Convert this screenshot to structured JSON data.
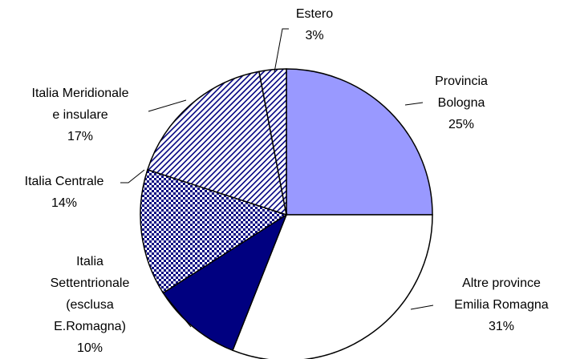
{
  "chart_data": {
    "type": "pie",
    "categories": [
      "Provincia\nBologna",
      "Altre province\nEmilia Romagna",
      "Italia\nSettentrionale\n(esclusa\nE.Romagna)",
      "Italia Centrale",
      "Italia Meridionale\ne insulare",
      "Estero"
    ],
    "values": [
      25,
      31,
      10,
      14,
      17,
      3
    ],
    "value_labels": [
      "25%",
      "31%",
      "10%",
      "14%",
      "17%",
      "3%"
    ],
    "colors": [
      "#9999ff",
      "#ffffff",
      "#000080",
      "#000080",
      "#000080",
      "#000080"
    ],
    "patterns": [
      "solid",
      "solid",
      "solid",
      "checker",
      "diagonal",
      "diagonal"
    ],
    "start_angle": 0,
    "direction": "clockwise"
  }
}
